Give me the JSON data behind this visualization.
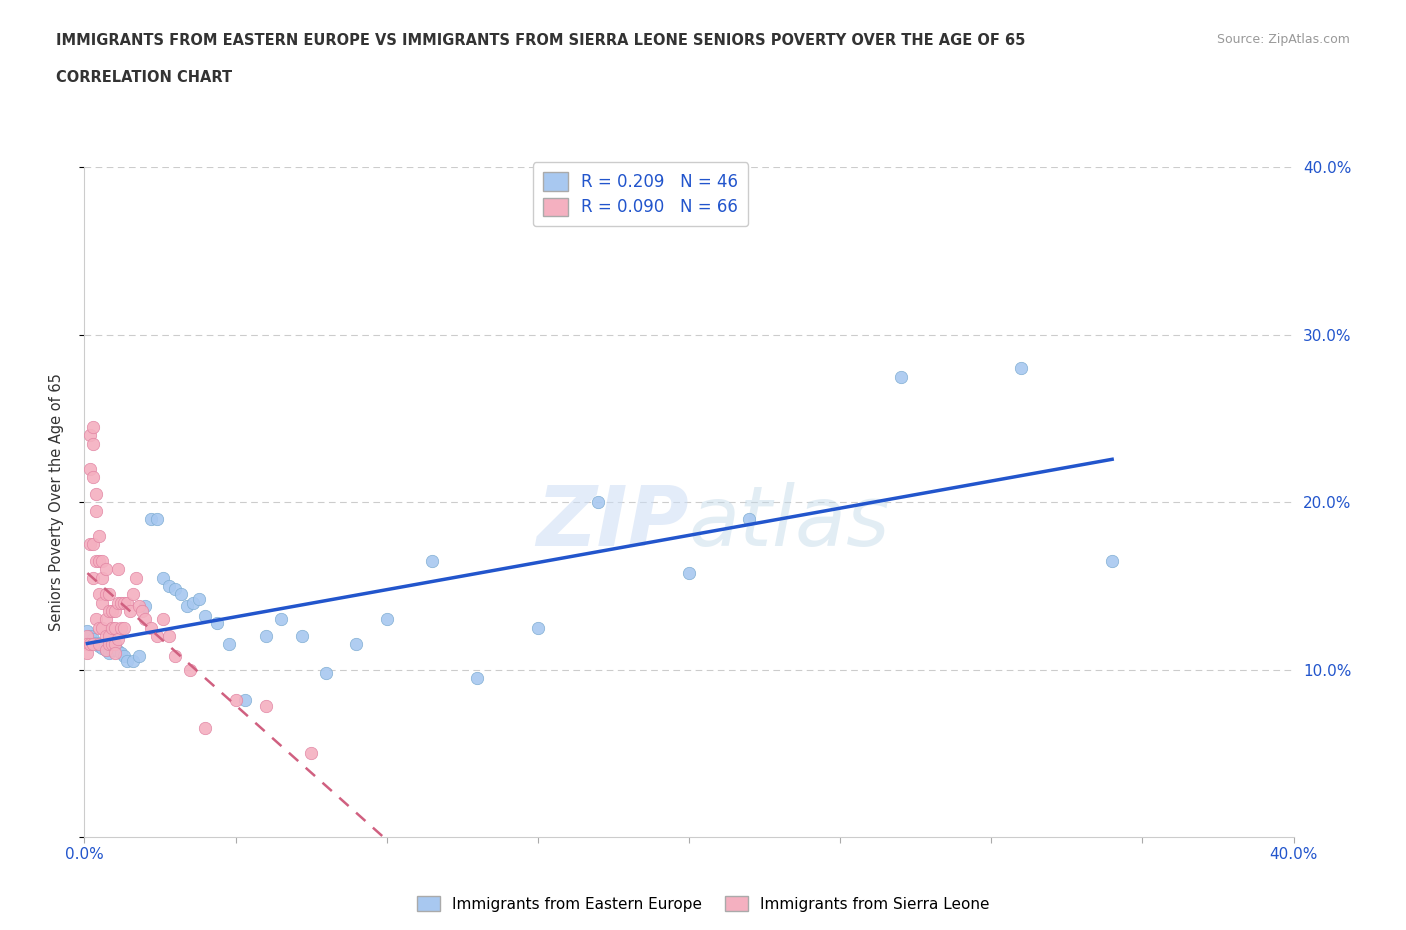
{
  "title_line1": "IMMIGRANTS FROM EASTERN EUROPE VS IMMIGRANTS FROM SIERRA LEONE SENIORS POVERTY OVER THE AGE OF 65",
  "title_line2": "CORRELATION CHART",
  "source_text": "Source: ZipAtlas.com",
  "ylabel": "Seniors Poverty Over the Age of 65",
  "xlim": [
    0.0,
    0.4
  ],
  "ylim": [
    0.0,
    0.4
  ],
  "watermark": "ZIPatlas",
  "series1_name": "Immigrants from Eastern Europe",
  "series1_color": "#a8c8f0",
  "series1_edge_color": "#7aaad0",
  "series1_line_color": "#2255cc",
  "series1_R": 0.209,
  "series1_N": 46,
  "series1_x": [
    0.001,
    0.002,
    0.003,
    0.004,
    0.005,
    0.005,
    0.006,
    0.007,
    0.008,
    0.009,
    0.01,
    0.011,
    0.012,
    0.013,
    0.014,
    0.016,
    0.018,
    0.02,
    0.022,
    0.024,
    0.026,
    0.028,
    0.03,
    0.032,
    0.034,
    0.036,
    0.038,
    0.04,
    0.044,
    0.048,
    0.053,
    0.06,
    0.065,
    0.072,
    0.08,
    0.09,
    0.1,
    0.115,
    0.13,
    0.15,
    0.17,
    0.2,
    0.22,
    0.27,
    0.31,
    0.34
  ],
  "series1_y": [
    0.123,
    0.12,
    0.118,
    0.116,
    0.114,
    0.115,
    0.113,
    0.112,
    0.11,
    0.112,
    0.115,
    0.111,
    0.11,
    0.108,
    0.105,
    0.105,
    0.108,
    0.138,
    0.19,
    0.19,
    0.155,
    0.15,
    0.148,
    0.145,
    0.138,
    0.14,
    0.142,
    0.132,
    0.128,
    0.115,
    0.082,
    0.12,
    0.13,
    0.12,
    0.098,
    0.115,
    0.13,
    0.165,
    0.095,
    0.125,
    0.2,
    0.158,
    0.19,
    0.275,
    0.28,
    0.165
  ],
  "series2_name": "Immigrants from Sierra Leone",
  "series2_color": "#f4b0c0",
  "series2_edge_color": "#e080a0",
  "series2_line_color": "#d06080",
  "series2_R": 0.09,
  "series2_N": 66,
  "series2_x": [
    0.001,
    0.001,
    0.001,
    0.002,
    0.002,
    0.002,
    0.002,
    0.003,
    0.003,
    0.003,
    0.003,
    0.003,
    0.003,
    0.004,
    0.004,
    0.004,
    0.004,
    0.005,
    0.005,
    0.005,
    0.005,
    0.005,
    0.006,
    0.006,
    0.006,
    0.006,
    0.007,
    0.007,
    0.007,
    0.007,
    0.007,
    0.008,
    0.008,
    0.008,
    0.008,
    0.009,
    0.009,
    0.009,
    0.01,
    0.01,
    0.01,
    0.01,
    0.011,
    0.011,
    0.011,
    0.012,
    0.012,
    0.013,
    0.013,
    0.014,
    0.015,
    0.016,
    0.017,
    0.018,
    0.019,
    0.02,
    0.022,
    0.024,
    0.026,
    0.028,
    0.03,
    0.035,
    0.04,
    0.05,
    0.06,
    0.075
  ],
  "series2_y": [
    0.12,
    0.115,
    0.11,
    0.24,
    0.22,
    0.175,
    0.115,
    0.245,
    0.235,
    0.215,
    0.175,
    0.155,
    0.115,
    0.205,
    0.195,
    0.165,
    0.13,
    0.18,
    0.165,
    0.145,
    0.125,
    0.115,
    0.165,
    0.155,
    0.14,
    0.125,
    0.16,
    0.145,
    0.13,
    0.12,
    0.112,
    0.145,
    0.135,
    0.12,
    0.115,
    0.135,
    0.125,
    0.115,
    0.135,
    0.125,
    0.115,
    0.11,
    0.16,
    0.14,
    0.118,
    0.14,
    0.125,
    0.14,
    0.125,
    0.14,
    0.135,
    0.145,
    0.155,
    0.138,
    0.135,
    0.13,
    0.125,
    0.12,
    0.13,
    0.12,
    0.108,
    0.1,
    0.065,
    0.082,
    0.078,
    0.05
  ],
  "background_color": "#ffffff",
  "grid_color": "#cccccc",
  "title_color": "#333333",
  "axis_color": "#2255cc",
  "legend_R_color": "#2255cc"
}
